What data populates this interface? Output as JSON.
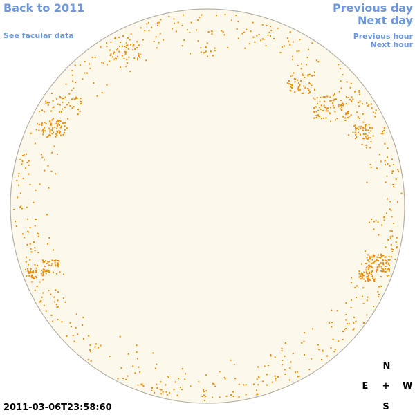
{
  "nav": {
    "back": "Back to 2011",
    "facular": "See facular data",
    "previous_day": "Previous day",
    "next_day": "Next day",
    "previous_hour": "Previous hour",
    "next_hour": "Next hour"
  },
  "timestamp": "2011-03-06T23:58:60",
  "compass": {
    "north": "N",
    "east": "E",
    "center": "+",
    "west": "W",
    "south": "S"
  },
  "colors": {
    "link": "#6d98e0",
    "disk_fill": "#fdf8ec",
    "disk_border": "#b8b0a4",
    "facula": "#f08c00"
  },
  "icons": {
    "solar_disk": "solar-disk-image"
  }
}
